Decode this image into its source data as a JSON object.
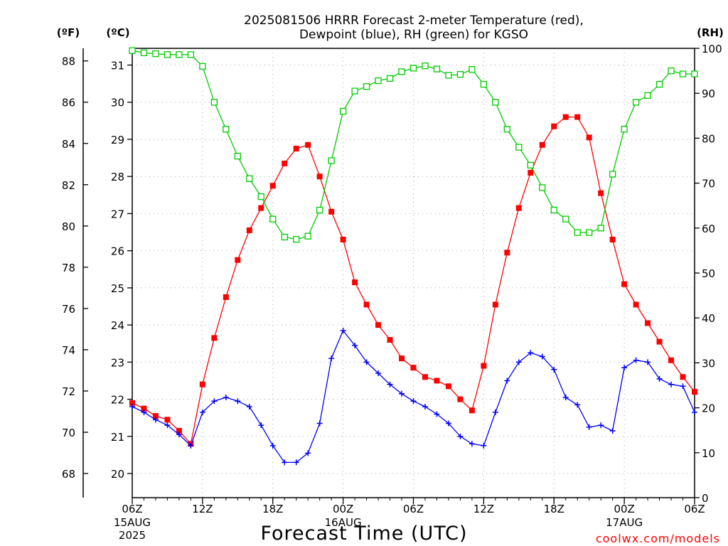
{
  "chart_data": {
    "type": "line",
    "title_line1": "2025081506 HRRR Forecast 2-meter Temperature (red),",
    "title_line2": "Dewpoint (blue), RH (green) for KGSO",
    "xlabel": "Forecast Time (UTC)",
    "credit": "coolwx.com/models",
    "unit_f": "(ºF)",
    "unit_c": "(ºC)",
    "unit_rh": "(RH)",
    "x_hours": [
      6,
      7,
      8,
      9,
      10,
      11,
      12,
      13,
      14,
      15,
      16,
      17,
      18,
      19,
      20,
      21,
      22,
      23,
      24,
      25,
      26,
      27,
      28,
      29,
      30,
      31,
      32,
      33,
      34,
      35,
      36,
      37,
      38,
      39,
      40,
      41,
      42,
      43,
      44,
      45,
      46,
      47,
      48,
      49,
      50,
      51,
      52,
      53,
      54
    ],
    "x_ticks": [
      {
        "hour": 6,
        "label": "06Z",
        "sub1": "15AUG",
        "sub2": "2025"
      },
      {
        "hour": 12,
        "label": "12Z"
      },
      {
        "hour": 18,
        "label": "18Z"
      },
      {
        "hour": 24,
        "label": "00Z",
        "sub1": "16AUG"
      },
      {
        "hour": 30,
        "label": "06Z"
      },
      {
        "hour": 36,
        "label": "12Z"
      },
      {
        "hour": 42,
        "label": "18Z"
      },
      {
        "hour": 48,
        "label": "00Z",
        "sub1": "17AUG"
      },
      {
        "hour": 54,
        "label": "06Z"
      }
    ],
    "ylim_c": [
      19.35,
      31.45
    ],
    "ylim_rh": [
      0,
      100
    ],
    "yticks_c": [
      20,
      21,
      22,
      23,
      24,
      25,
      26,
      27,
      28,
      29,
      30,
      31
    ],
    "yticks_f": [
      68,
      70,
      72,
      74,
      76,
      78,
      80,
      82,
      84,
      86,
      88
    ],
    "yticks_rh": [
      0,
      10,
      20,
      30,
      40,
      50,
      60,
      70,
      80,
      90,
      100
    ],
    "grid": true,
    "series": [
      {
        "name": "Temperature (red)",
        "unit": "C",
        "color": "#ff0000",
        "marker": "filled-square",
        "values": [
          21.9,
          21.75,
          21.55,
          21.45,
          21.15,
          20.8,
          22.4,
          23.65,
          24.75,
          25.75,
          26.55,
          27.15,
          27.75,
          28.35,
          28.75,
          28.85,
          28.0,
          27.05,
          26.3,
          25.15,
          24.55,
          24.0,
          23.6,
          23.1,
          22.85,
          22.6,
          22.5,
          22.35,
          22.0,
          21.7,
          22.9,
          24.55,
          25.95,
          27.15,
          28.1,
          28.85,
          29.35,
          29.6,
          29.6,
          29.05,
          27.55,
          26.3,
          25.1,
          24.55,
          24.05,
          23.55,
          23.05,
          22.6,
          22.2
        ]
      },
      {
        "name": "Dewpoint (blue)",
        "unit": "C",
        "color": "#0000ff",
        "marker": "plus",
        "values": [
          21.8,
          21.65,
          21.45,
          21.3,
          21.05,
          20.75,
          21.65,
          21.95,
          22.05,
          21.95,
          21.8,
          21.3,
          20.75,
          20.3,
          20.3,
          20.55,
          21.35,
          23.1,
          23.85,
          23.45,
          23.0,
          22.7,
          22.4,
          22.15,
          21.95,
          21.8,
          21.6,
          21.35,
          21.0,
          20.8,
          20.75,
          21.65,
          22.5,
          23.0,
          23.25,
          23.15,
          22.8,
          22.05,
          21.85,
          21.25,
          21.3,
          21.15,
          22.85,
          23.05,
          23.0,
          22.55,
          22.4,
          22.35,
          21.65
        ]
      },
      {
        "name": "RH (green)",
        "unit": "%",
        "color": "#00cc00",
        "marker": "open-square",
        "values": [
          99.5,
          99.0,
          98.8,
          98.6,
          98.6,
          98.6,
          96.0,
          88.0,
          82.0,
          76.0,
          71.0,
          67.0,
          62.0,
          58.0,
          57.5,
          58.2,
          64.0,
          75.0,
          86.0,
          90.5,
          91.5,
          92.8,
          93.3,
          94.8,
          95.6,
          96.1,
          95.4,
          94.0,
          94.2,
          95.3,
          92.0,
          88.0,
          82.0,
          78.0,
          74.0,
          69.0,
          64.0,
          62.0,
          59.0,
          59.0,
          60.0,
          72.0,
          82.0,
          88.0,
          89.5,
          92.0,
          95.0,
          94.3,
          94.3
        ]
      }
    ]
  }
}
